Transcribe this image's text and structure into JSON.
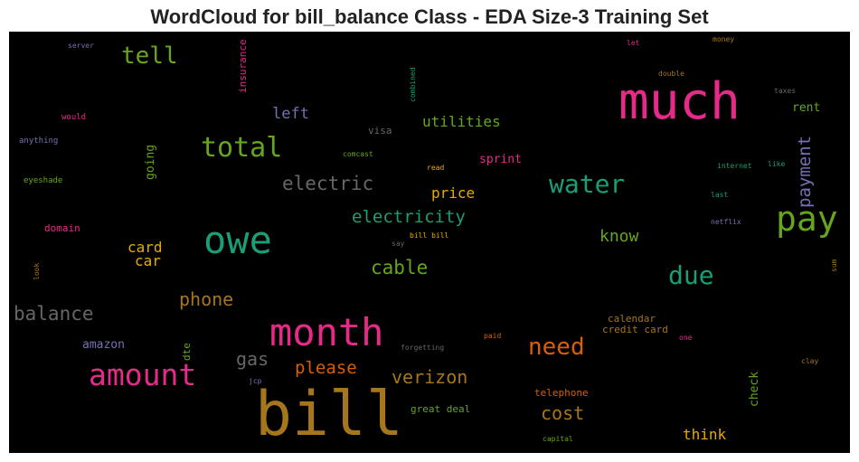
{
  "title": "WordCloud for bill_balance Class - EDA Size-3 Training Set",
  "words": [
    {
      "text": "bill",
      "color": "#a6761d"
    },
    {
      "text": "much",
      "color": "#e7298a"
    },
    {
      "text": "owe",
      "color": "#1b9e77"
    },
    {
      "text": "month",
      "color": "#e7298a"
    },
    {
      "text": "pay",
      "color": "#66a61e"
    },
    {
      "text": "amount",
      "color": "#e7298a"
    },
    {
      "text": "total",
      "color": "#66a61e"
    },
    {
      "text": "water",
      "color": "#1b9e77"
    },
    {
      "text": "due",
      "color": "#1b9e77"
    },
    {
      "text": "need",
      "color": "#d95f02"
    },
    {
      "text": "tell",
      "color": "#66a61e"
    },
    {
      "text": "payment",
      "color": "#7570b3"
    },
    {
      "text": "electric",
      "color": "#666666"
    },
    {
      "text": "electricity",
      "color": "#1b9e77"
    },
    {
      "text": "cable",
      "color": "#66a61e"
    },
    {
      "text": "balance",
      "color": "#666666"
    },
    {
      "text": "phone",
      "color": "#a6761d"
    },
    {
      "text": "verizon",
      "color": "#a6761d"
    },
    {
      "text": "cost",
      "color": "#a6761d"
    },
    {
      "text": "gas",
      "color": "#666666"
    },
    {
      "text": "please",
      "color": "#d95f02"
    },
    {
      "text": "left",
      "color": "#7570b3"
    },
    {
      "text": "utilities",
      "color": "#66a61e"
    },
    {
      "text": "know",
      "color": "#66a61e"
    },
    {
      "text": "price",
      "color": "#e6ab02"
    },
    {
      "text": "card",
      "color": "#e6ab02"
    },
    {
      "text": "car",
      "color": "#e6ab02"
    },
    {
      "text": "think",
      "color": "#e6ab02"
    },
    {
      "text": "sprint",
      "color": "#e7298a"
    },
    {
      "text": "amazon",
      "color": "#7570b3"
    },
    {
      "text": "going",
      "color": "#66a61e"
    },
    {
      "text": "check",
      "color": "#66a61e"
    },
    {
      "text": "rent",
      "color": "#66a61e"
    },
    {
      "text": "insurance",
      "color": "#e7298a"
    },
    {
      "text": "telephone",
      "color": "#d95f02"
    },
    {
      "text": "calendar",
      "color": "#a6761d"
    },
    {
      "text": "credit card",
      "color": "#a6761d"
    },
    {
      "text": "great deal",
      "color": "#66a61e"
    },
    {
      "text": "visa",
      "color": "#666666"
    },
    {
      "text": "dte",
      "color": "#66a61e"
    },
    {
      "text": "domain",
      "color": "#e7298a"
    },
    {
      "text": "would",
      "color": "#e7298a"
    },
    {
      "text": "anything",
      "color": "#7570b3"
    },
    {
      "text": "eyeshade",
      "color": "#66a61e"
    },
    {
      "text": "server",
      "color": "#7570b3"
    },
    {
      "text": "combined",
      "color": "#1b9e77"
    },
    {
      "text": "comcast",
      "color": "#66a61e"
    },
    {
      "text": "read",
      "color": "#e6ab02"
    },
    {
      "text": "internet",
      "color": "#1b9e77"
    },
    {
      "text": "like",
      "color": "#1b9e77"
    },
    {
      "text": "last",
      "color": "#1b9e77"
    },
    {
      "text": "netflix",
      "color": "#7570b3"
    },
    {
      "text": "bill bill",
      "color": "#e6ab02"
    },
    {
      "text": "say",
      "color": "#666666"
    },
    {
      "text": "money",
      "color": "#a6761d"
    },
    {
      "text": "let",
      "color": "#e7298a"
    },
    {
      "text": "double",
      "color": "#a6761d"
    },
    {
      "text": "taxes",
      "color": "#666666"
    },
    {
      "text": "sum",
      "color": "#a6761d"
    },
    {
      "text": "clay",
      "color": "#a6761d"
    },
    {
      "text": "one",
      "color": "#e7298a"
    },
    {
      "text": "paid",
      "color": "#d95f02"
    },
    {
      "text": "forgetting",
      "color": "#666666"
    },
    {
      "text": "jcp",
      "color": "#7570b3"
    },
    {
      "text": "look",
      "color": "#a6761d"
    },
    {
      "text": "capital",
      "color": "#66a61e"
    }
  ]
}
